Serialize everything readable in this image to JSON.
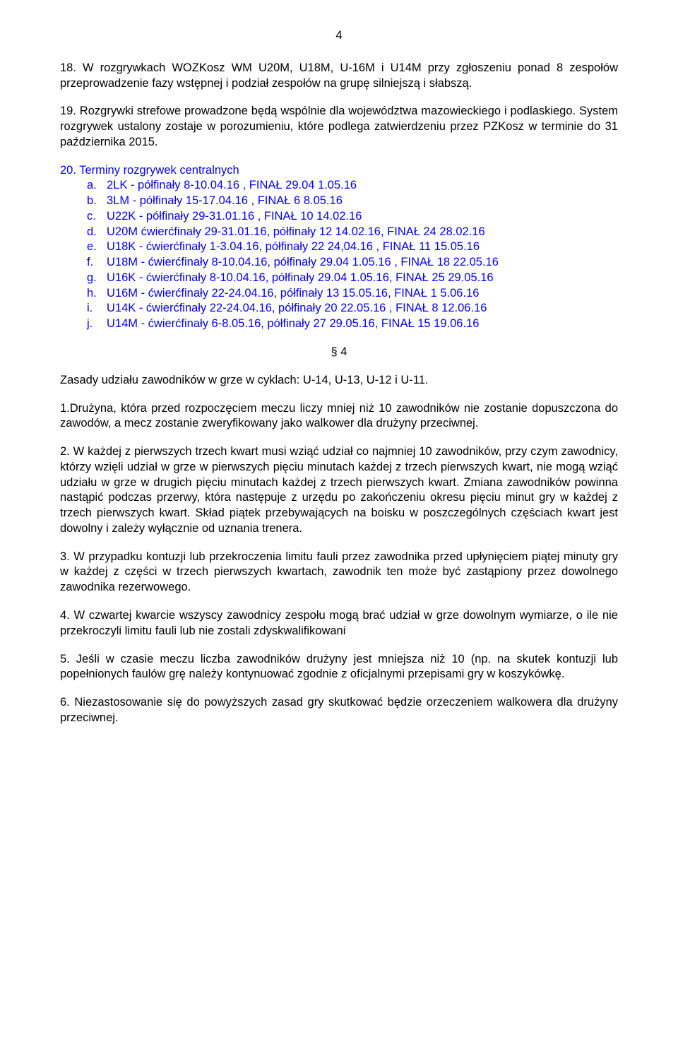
{
  "page_number": "4",
  "p18": "18. W rozgrywkach WOZKosz WM U20M, U18M, U-16M i U14M przy zgłoszeniu ponad 8 zespołów przeprowadzenie fazy wstępnej i podział zespołów na grupę silniejszą i słabszą.",
  "p19": "19. Rozgrywki strefowe prowadzone będą wspólnie dla województwa mazowieckiego i podlaskiego. System rozgrywek ustalony zostaje w porozumieniu, które podlega zatwierdzeniu przez PZKosz w terminie do 31 października 2015.",
  "p20_head": "20. Terminy rozgrywek centralnych",
  "list": {
    "a": "2LK - półfinały 8-10.04.16 , FINAŁ  29.04 1.05.16",
    "b": "3LM - półfinały 15-17.04.16 , FINAŁ 6  8.05.16",
    "c": "U22K - półfinały  29-31.01.16 ,  FINAŁ  10  14.02.16",
    "d": "U20M ćwierćfinały 29-31.01.16, półfinały 12  14.02.16,  FINAŁ 24  28.02.16",
    "e": "U18K - ćwierćfinały 1-3.04.16, półfinały 22  24,04.16 , FINAŁ 11  15.05.16",
    "f": "U18M - ćwierćfinały 8-10.04.16, półfinały 29.04  1.05.16 , FINAŁ 18  22.05.16",
    "g": "U16K - ćwierćfinały 8-10.04.16, półfinały 29.04  1.05.16, FINAŁ 25  29.05.16",
    "h": "U16M - ćwierćfinały 22-24.04.16, półfinały 13  15.05.16, FINAŁ 1  5.06.16",
    "i": "U14K - ćwierćfinały 22-24.04.16, półfinały 20  22.05.16 , FINAŁ 8  12.06.16",
    "j": "U14M - ćwierćfinały 6-8.05.16, półfinały 27  29.05.16, FINAŁ 15  19.06.16"
  },
  "bullets": {
    "a": "a.",
    "b": "b.",
    "c": "c.",
    "d": "d.",
    "e": "e.",
    "f": "f.",
    "g": "g.",
    "h": "h.",
    "i": "i.",
    "j": "j."
  },
  "section4_head": "§ 4",
  "s4_intro": "Zasady udziału zawodników w grze w cyklach: U-14, U-13, U-12 i U-11.",
  "s4_p1": "1.Drużyna, która przed rozpoczęciem meczu liczy mniej niż 10 zawodników nie zostanie dopuszczona do zawodów, a mecz zostanie zweryfikowany jako walkower dla drużyny przeciwnej.",
  "s4_p2": "2. W każdej z pierwszych trzech kwart musi wziąć udział co najmniej 10 zawodników, przy czym zawodnicy, którzy wzięli udział w grze w pierwszych pięciu minutach każdej z trzech pierwszych kwart, nie mogą wziąć udziału w grze w drugich pięciu minutach każdej z trzech pierwszych kwart. Zmiana zawodników powinna nastąpić podczas przerwy, która następuje z urzędu po zakończeniu okresu pięciu minut gry w każdej z trzech pierwszych kwart. Skład piątek przebywających na boisku w poszczególnych częściach kwart jest dowolny i zależy wyłącznie od uznania trenera.",
  "s4_p3": "3. W przypadku kontuzji lub przekroczenia limitu fauli przez zawodnika przed upłynięciem piątej minuty gry w każdej z części w trzech pierwszych kwartach, zawodnik ten może być zastąpiony przez dowolnego zawodnika rezerwowego.",
  "s4_p4": "4. W czwartej kwarcie wszyscy zawodnicy zespołu mogą brać udział w grze dowolnym wymiarze, o ile nie przekroczyli limitu fauli lub nie zostali zdyskwalifikowani",
  "s4_p5": "5. Jeśli w czasie meczu liczba zawodników drużyny jest mniejsza niż 10 (np. na skutek kontuzji lub popełnionych faulów grę należy kontynuować zgodnie z oficjalnymi przepisami gry w koszykówkę.",
  "s4_p6": "6. Niezastosowanie się do powyższych zasad gry skutkować będzie orzeczeniem walkowera dla drużyny przeciwnej."
}
